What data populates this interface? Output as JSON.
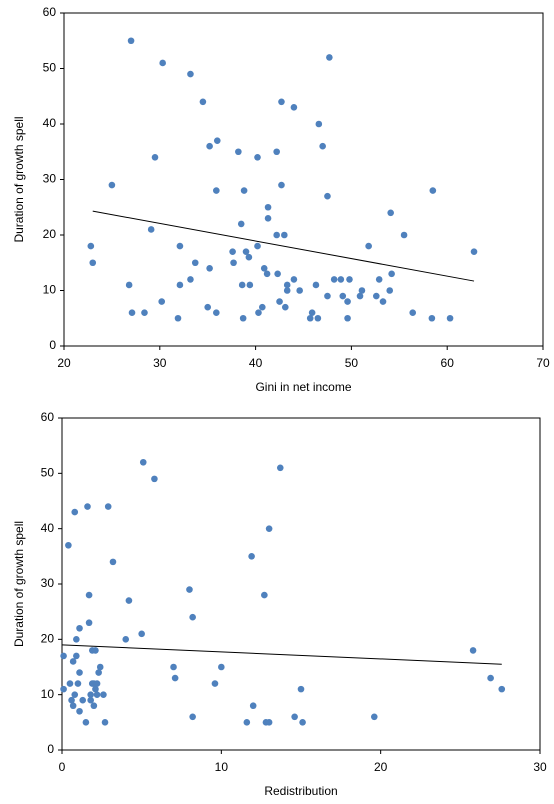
{
  "chart_data": [
    {
      "type": "scatter",
      "x_label": "Gini in net income",
      "y_label": "Duration of growth spell",
      "xlim": [
        20,
        70
      ],
      "xticks": [
        20,
        30,
        40,
        50,
        60,
        70
      ],
      "ylim": [
        0,
        60
      ],
      "yticks": [
        0,
        10,
        20,
        30,
        40,
        50,
        60
      ],
      "color": "#4f81bd",
      "trend_color": "#000000",
      "series": [
        {
          "name": "Spells",
          "x": [
            27.0,
            30.3,
            33.2,
            34.5,
            47.7,
            42.7,
            44,
            46.6,
            47,
            29.5,
            35.2,
            36,
            38.2,
            40.2,
            42.2,
            25,
            35.9,
            38.8,
            42.7,
            47.5,
            58.5,
            41.3,
            41.3,
            38.5,
            29.1,
            22.8,
            23,
            32.1,
            42.2,
            43,
            40.2,
            51.8,
            55.5,
            54.1,
            62.8,
            37.6,
            39,
            39.3,
            37.7,
            33.7,
            40.9,
            41.2,
            35.2,
            33.2,
            32.1,
            26.8,
            30.2,
            27.1,
            28.4,
            31.9,
            35,
            35.9,
            38.6,
            39.4,
            42.3,
            42.5,
            43.3,
            43.3,
            43.1,
            44,
            44.6,
            38.7,
            40.7,
            40.3,
            45.9,
            45.7,
            46.5,
            46.3,
            47.5,
            48.2,
            48.9,
            49.1,
            49.8,
            49.6,
            49.6,
            50.9,
            51.1,
            52.6,
            52.9,
            53.3,
            54,
            54.2,
            56.4,
            58.4,
            60.3
          ],
          "values": [
            55,
            51,
            49,
            44,
            52,
            44,
            43,
            40,
            36,
            34,
            36,
            37,
            35,
            34,
            35,
            29,
            28,
            28,
            29,
            27,
            28,
            25,
            23,
            22,
            21,
            18,
            15,
            18,
            20,
            20,
            18,
            18,
            20,
            24,
            17,
            17,
            17,
            16,
            15,
            15,
            14,
            13,
            14,
            12,
            11,
            11,
            8,
            6,
            6,
            5,
            7,
            6,
            11,
            11,
            13,
            8,
            11,
            10,
            7,
            12,
            10,
            5,
            7,
            6,
            6,
            5,
            5,
            11,
            9,
            12,
            12,
            9,
            12,
            8,
            5,
            9,
            10,
            9,
            12,
            8,
            10,
            13,
            6,
            5,
            5
          ]
        }
      ],
      "trendline": {
        "x": [
          23,
          62.8
        ],
        "y": [
          24.3,
          11.7
        ]
      }
    },
    {
      "type": "scatter",
      "x_label": "Redistribution",
      "y_label": "Duration of growth spell",
      "xlim": [
        0,
        30
      ],
      "xticks": [
        0,
        10,
        20,
        30
      ],
      "ylim": [
        0,
        60
      ],
      "yticks": [
        0,
        10,
        20,
        30,
        40,
        50,
        60
      ],
      "color": "#4f81bd",
      "trend_color": "#000000",
      "series": [
        {
          "name": "Spells",
          "x": [
            0.1,
            0.1,
            0.4,
            0.5,
            0.6,
            0.7,
            0.7,
            0.8,
            0.8,
            0.9,
            0.9,
            1,
            1.1,
            1.1,
            1.1,
            1.3,
            1.5,
            1.6,
            1.7,
            1.7,
            1.8,
            1.8,
            1.9,
            1.9,
            2,
            2,
            2.1,
            2.1,
            2.2,
            2.2,
            2.3,
            2.4,
            2.6,
            2.7,
            2.9,
            3.2,
            4,
            4.2,
            5,
            5.1,
            5.8,
            7,
            7.1,
            8,
            8.2,
            8.2,
            9.6,
            10,
            11.6,
            11.9,
            12,
            12.7,
            12.8,
            13,
            13,
            13.7,
            14.6,
            15,
            15.1,
            19.6,
            25.8,
            26.9,
            27.6
          ],
          "values": [
            17,
            11,
            37,
            12,
            9,
            8,
            16,
            10,
            43,
            20,
            17,
            12,
            7,
            14,
            22,
            9,
            5,
            44,
            23,
            28,
            10,
            9,
            18,
            12,
            8,
            12,
            11,
            18,
            10,
            12,
            14,
            15,
            10,
            5,
            44,
            34,
            20,
            27,
            21,
            52,
            49,
            15,
            13,
            29,
            24,
            6,
            12,
            15,
            5,
            35,
            8,
            28,
            5,
            40,
            5,
            51,
            6,
            11,
            5,
            6,
            18,
            13,
            11
          ]
        }
      ],
      "trendline": {
        "x": [
          0,
          27.6
        ],
        "y": [
          19,
          15.5
        ]
      }
    }
  ]
}
